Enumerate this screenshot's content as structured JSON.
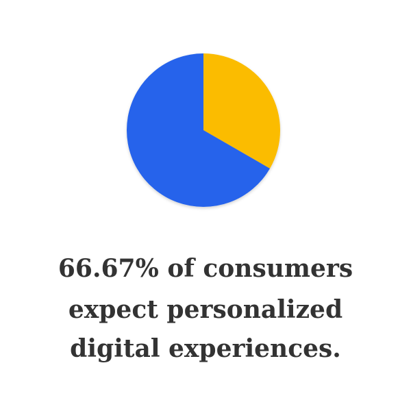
{
  "chart_data": {
    "type": "pie",
    "values": [
      33.33,
      66.67
    ],
    "colors": [
      "#fbbc05",
      "#2563eb"
    ],
    "caption": [
      "66.67% of consumers",
      "expect personalized",
      "digital experiences."
    ]
  }
}
